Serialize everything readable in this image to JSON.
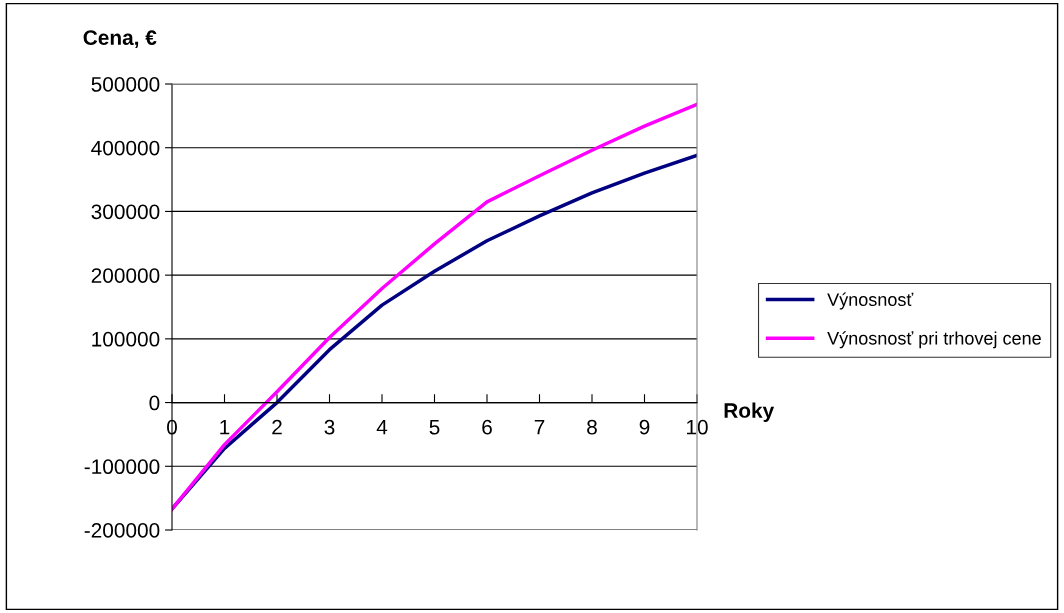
{
  "chart_data": {
    "type": "line",
    "ylabel": "Cena, €",
    "xlabel": "Roky",
    "x": [
      0,
      1,
      2,
      3,
      4,
      5,
      6,
      7,
      8,
      9,
      10
    ],
    "series": [
      {
        "name": "Výnosnosť",
        "color": "#000080",
        "values": [
          -167000,
          -72000,
          0,
          83000,
          153000,
          206000,
          254000,
          293000,
          329000,
          360000,
          388000
        ]
      },
      {
        "name": "Výnosnosť pri trhovej cene",
        "color": "#ff00ff",
        "values": [
          -167000,
          -66000,
          17000,
          102000,
          179000,
          249000,
          315000,
          356000,
          396000,
          434000,
          468000
        ]
      }
    ],
    "xlim": [
      0,
      10
    ],
    "xticks": [
      0,
      1,
      2,
      3,
      4,
      5,
      6,
      7,
      8,
      9,
      10
    ],
    "ylim": [
      -200000,
      500000
    ],
    "yticks": [
      -200000,
      -100000,
      0,
      100000,
      200000,
      300000,
      400000,
      500000
    ],
    "grid": "y",
    "legend": "right",
    "marker": "none",
    "line_style": "solid"
  }
}
